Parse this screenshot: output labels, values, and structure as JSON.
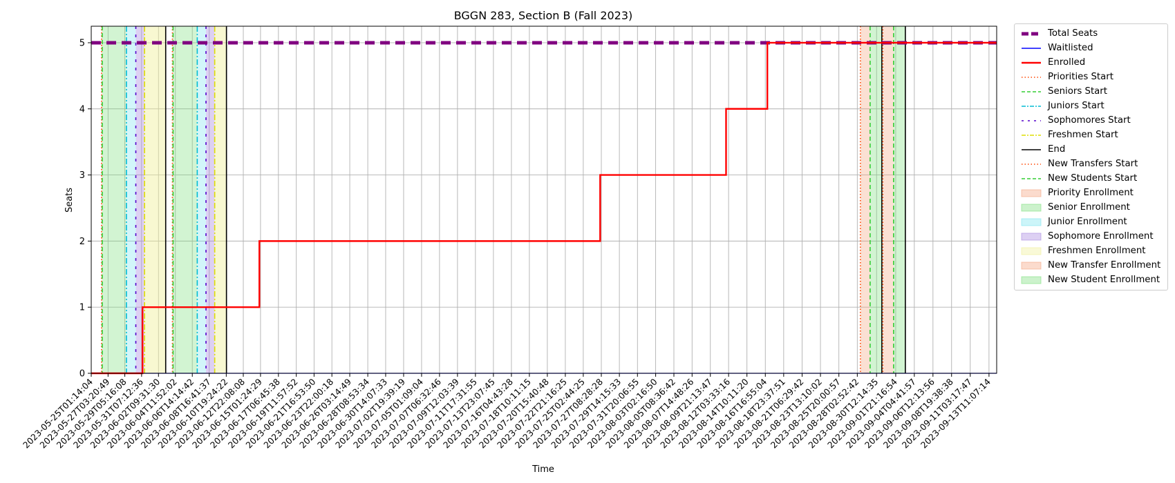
{
  "chart_data": {
    "type": "line",
    "title": "BGGN 283, Section B (Fall 2023)",
    "xlabel": "Time",
    "ylabel": "Seats",
    "x_start": "2023-05-25T01:14:04",
    "x_end": "2023-09-14T10:00:00",
    "ylim": [
      0,
      5.25
    ],
    "y_ticks": [
      "0",
      "1",
      "2",
      "3",
      "4",
      "5"
    ],
    "grid": true,
    "legend_position": "right, outside plot",
    "x_tick_labels": [
      "2023-05-25T01:14:04",
      "2023-05-27T03:20:49",
      "2023-05-29T05:16:08",
      "2023-05-31T07:12:36",
      "2023-06-02T09:31:30",
      "2023-06-04T11:52:02",
      "2023-06-06T14:14:42",
      "2023-06-08T16:41:37",
      "2023-06-10T19:24:22",
      "2023-06-12T22:08:08",
      "2023-06-15T01:24:29",
      "2023-06-17T06:45:38",
      "2023-06-19T11:57:52",
      "2023-06-21T16:53:50",
      "2023-06-23T22:00:18",
      "2023-06-26T03:14:49",
      "2023-06-28T08:53:34",
      "2023-06-30T14:07:33",
      "2023-07-02T19:39:19",
      "2023-07-05T01:09:04",
      "2023-07-07T06:32:46",
      "2023-07-09T12:03:39",
      "2023-07-11T17:31:55",
      "2023-07-13T23:07:45",
      "2023-07-16T04:43:28",
      "2023-07-18T10:11:15",
      "2023-07-20T15:40:48",
      "2023-07-22T21:16:25",
      "2023-07-25T02:44:25",
      "2023-07-27T08:28:28",
      "2023-07-29T14:15:33",
      "2023-07-31T20:06:55",
      "2023-08-03T02:16:50",
      "2023-08-05T08:36:42",
      "2023-08-07T14:48:26",
      "2023-08-09T21:13:47",
      "2023-08-12T03:33:16",
      "2023-08-14T10:11:20",
      "2023-08-16T16:55:04",
      "2023-08-18T23:37:51",
      "2023-08-21T06:29:42",
      "2023-08-23T13:10:02",
      "2023-08-25T20:00:57",
      "2023-08-28T02:52:42",
      "2023-08-30T12:14:35",
      "2023-09-01T21:16:54",
      "2023-09-04T04:41:57",
      "2023-09-06T12:13:56",
      "2023-09-08T19:38:38",
      "2023-09-11T03:17:47",
      "2023-09-13T11:07:14"
    ],
    "series": [
      {
        "name": "Total Seats",
        "color": "#800080",
        "style": "dashed-thick",
        "points": [
          [
            "2023-05-25T01:14:04",
            5
          ],
          [
            "2023-09-14T10:00:00",
            5
          ]
        ]
      },
      {
        "name": "Waitlisted",
        "color": "#0000ff",
        "style": "solid",
        "points": [
          [
            "2023-05-25T01:14:04",
            0
          ],
          [
            "2023-09-14T10:00:00",
            0
          ]
        ]
      },
      {
        "name": "Enrolled",
        "color": "#ff0000",
        "style": "step",
        "points": [
          [
            "2023-05-25T01:14:04",
            0
          ],
          [
            "2023-05-31T10:00:00",
            1
          ],
          [
            "2023-06-14T22:00:00",
            2
          ],
          [
            "2023-07-27T05:00:00",
            3
          ],
          [
            "2023-08-11T20:00:00",
            4
          ],
          [
            "2023-08-16T23:00:00",
            5
          ],
          [
            "2023-09-14T10:00:00",
            5
          ]
        ]
      }
    ],
    "vertical_markers": [
      {
        "name": "Priorities Start",
        "color": "#ff4500",
        "style": "dotted",
        "at": [
          "2023-05-26T08:00:00",
          "2023-06-04T03:00:00",
          "2023-08-28T12:00:00"
        ]
      },
      {
        "name": "Seniors Start",
        "color": "#32cd32",
        "style": "dashed",
        "at": [
          "2023-05-26T10:00:00",
          "2023-06-04T05:00:00"
        ]
      },
      {
        "name": "Juniors Start",
        "color": "#00bcd4",
        "style": "dashdot",
        "at": [
          "2023-05-29T10:00:00",
          "2023-06-07T05:00:00"
        ]
      },
      {
        "name": "Sophomores Start",
        "color": "#5500cc",
        "style": "loosedash",
        "at": [
          "2023-05-30T14:00:00",
          "2023-06-08T07:00:00"
        ]
      },
      {
        "name": "Freshmen Start",
        "color": "#dddd00",
        "style": "dashdot",
        "at": [
          "2023-05-31T16:00:00",
          "2023-06-09T09:00:00"
        ]
      },
      {
        "name": "End",
        "color": "#000000",
        "style": "solid",
        "at": [
          "2023-06-03T07:00:00",
          "2023-06-10T20:00:00",
          "2023-08-31T04:00:00",
          "2023-09-03T02:00:00"
        ]
      },
      {
        "name": "New Transfers Start",
        "color": "#ff4500",
        "style": "dotted",
        "at": [
          "2023-08-31T07:00:00"
        ]
      },
      {
        "name": "New Students Start",
        "color": "#32cd32",
        "style": "dashed",
        "at": [
          "2023-08-29T17:00:00",
          "2023-09-01T15:00:00"
        ]
      }
    ],
    "shaded_periods": [
      {
        "name": "Priority Enrollment",
        "color": "#f4a582",
        "alpha": 0.35,
        "ranges": [
          [
            "2023-05-26T08:00:00",
            "2023-05-26T10:00:00"
          ],
          [
            "2023-06-04T03:00:00",
            "2023-06-04T05:00:00"
          ]
        ]
      },
      {
        "name": "Senior Enrollment",
        "color": "#7fdf7f",
        "alpha": 0.35,
        "ranges": [
          [
            "2023-05-26T10:00:00",
            "2023-05-29T10:00:00"
          ],
          [
            "2023-06-04T05:00:00",
            "2023-06-07T05:00:00"
          ]
        ]
      },
      {
        "name": "Junior Enrollment",
        "color": "#7fe5f0",
        "alpha": 0.35,
        "ranges": [
          [
            "2023-05-29T10:00:00",
            "2023-05-30T14:00:00"
          ],
          [
            "2023-06-07T05:00:00",
            "2023-06-08T07:00:00"
          ]
        ]
      },
      {
        "name": "Sophomore Enrollment",
        "color": "#a98ae0",
        "alpha": 0.4,
        "ranges": [
          [
            "2023-05-30T14:00:00",
            "2023-05-31T16:00:00"
          ],
          [
            "2023-06-08T07:00:00",
            "2023-06-09T09:00:00"
          ]
        ]
      },
      {
        "name": "Freshmen Enrollment",
        "color": "#f0f09a",
        "alpha": 0.45,
        "ranges": [
          [
            "2023-05-31T16:00:00",
            "2023-06-03T07:00:00"
          ],
          [
            "2023-06-09T09:00:00",
            "2023-06-10T20:00:00"
          ]
        ]
      },
      {
        "name": "New Transfer Enrollment",
        "color": "#f4a582",
        "alpha": 0.35,
        "ranges": [
          [
            "2023-08-28T12:00:00",
            "2023-08-29T17:00:00"
          ],
          [
            "2023-08-31T07:00:00",
            "2023-09-01T15:00:00"
          ]
        ]
      },
      {
        "name": "New Student Enrollment",
        "color": "#7fdf7f",
        "alpha": 0.35,
        "ranges": [
          [
            "2023-08-29T17:00:00",
            "2023-08-31T04:00:00"
          ],
          [
            "2023-09-01T15:00:00",
            "2023-09-03T02:00:00"
          ]
        ]
      }
    ],
    "legend_entries": [
      {
        "label": "Total Seats",
        "kind": "line",
        "color": "#800080",
        "style": "dashed-thick"
      },
      {
        "label": "Waitlisted",
        "kind": "line",
        "color": "#0000ff",
        "style": "solid"
      },
      {
        "label": "Enrolled",
        "kind": "line",
        "color": "#ff0000",
        "style": "solid-thick"
      },
      {
        "label": "Priorities Start",
        "kind": "line",
        "color": "#ff4500",
        "style": "dotted"
      },
      {
        "label": "Seniors Start",
        "kind": "line",
        "color": "#32cd32",
        "style": "dashed"
      },
      {
        "label": "Juniors Start",
        "kind": "line",
        "color": "#00bcd4",
        "style": "dashdot"
      },
      {
        "label": "Sophomores Start",
        "kind": "line",
        "color": "#5500cc",
        "style": "loosedash"
      },
      {
        "label": "Freshmen Start",
        "kind": "line",
        "color": "#dddd00",
        "style": "dashdot"
      },
      {
        "label": "End",
        "kind": "line",
        "color": "#000000",
        "style": "solid"
      },
      {
        "label": "New Transfers Start",
        "kind": "line",
        "color": "#ff4500",
        "style": "dotted"
      },
      {
        "label": "New Students Start",
        "kind": "line",
        "color": "#32cd32",
        "style": "dashed"
      },
      {
        "label": "Priority Enrollment",
        "kind": "patch",
        "color": "#f4a582"
      },
      {
        "label": "Senior Enrollment",
        "kind": "patch",
        "color": "#7fdf7f"
      },
      {
        "label": "Junior Enrollment",
        "kind": "patch",
        "color": "#7fe5f0"
      },
      {
        "label": "Sophomore Enrollment",
        "kind": "patch",
        "color": "#a98ae0"
      },
      {
        "label": "Freshmen Enrollment",
        "kind": "patch",
        "color": "#f0f09a"
      },
      {
        "label": "New Transfer Enrollment",
        "kind": "patch",
        "color": "#f4a582"
      },
      {
        "label": "New Student Enrollment",
        "kind": "patch",
        "color": "#7fdf7f"
      }
    ]
  }
}
